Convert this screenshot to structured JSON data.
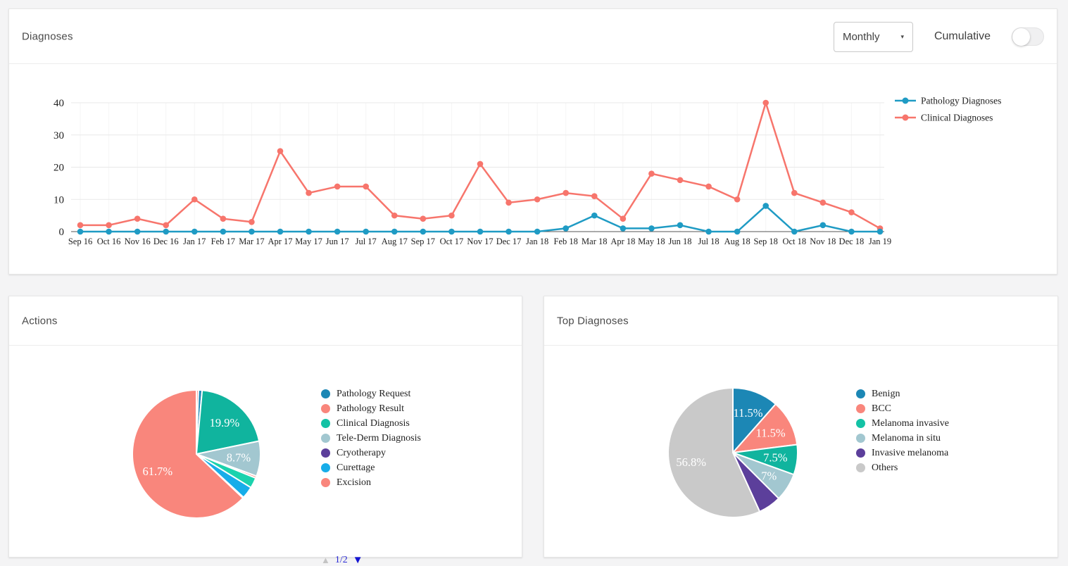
{
  "diagnoses_panel": {
    "title": "Diagnoses",
    "period_select": {
      "value": "Monthly",
      "caret_icon": "▾"
    },
    "cumulative_label": "Cumulative",
    "cumulative_toggle_on": false
  },
  "actions_panel": {
    "title": "Actions",
    "legend_pager": {
      "up_icon": "▲",
      "label": "1/2",
      "down_icon": "▼"
    }
  },
  "top_diagnoses_panel": {
    "title": "Top Diagnoses"
  },
  "ui_colors": {
    "card_bg": "#ffffff",
    "page_bg": "#f4f4f5",
    "pager_active": "#1414d2",
    "pager_inactive": "#c4c4c4"
  },
  "chart_data": [
    {
      "id": "diagnoses_line",
      "type": "line",
      "title": "",
      "xlabel": "",
      "ylabel": "",
      "ylim": [
        0,
        40
      ],
      "yticks": [
        0,
        10,
        20,
        30,
        40
      ],
      "grid": true,
      "legend_position": "right-top",
      "categories": [
        "Sep 16",
        "Oct 16",
        "Nov 16",
        "Dec 16",
        "Jan 17",
        "Feb 17",
        "Mar 17",
        "Apr 17",
        "May 17",
        "Jun 17",
        "Jul 17",
        "Aug 17",
        "Sep 17",
        "Oct 17",
        "Nov 17",
        "Dec 17",
        "Jan 18",
        "Feb 18",
        "Mar 18",
        "Apr 18",
        "May 18",
        "Jun 18",
        "Jul 18",
        "Aug 18",
        "Sep 18",
        "Oct 18",
        "Nov 18",
        "Dec 18",
        "Jan 19"
      ],
      "series": [
        {
          "name": "Pathology Diagnoses",
          "color": "#1f9bc4",
          "values": [
            0,
            0,
            0,
            0,
            0,
            0,
            0,
            0,
            0,
            0,
            0,
            0,
            0,
            0,
            0,
            0,
            0,
            1,
            5,
            1,
            1,
            2,
            0,
            0,
            8,
            0,
            2,
            0,
            0
          ]
        },
        {
          "name": "Clinical Diagnoses",
          "color": "#f7756c",
          "values": [
            2,
            2,
            4,
            2,
            10,
            4,
            3,
            25,
            12,
            14,
            14,
            5,
            4,
            5,
            21,
            9,
            10,
            12,
            11,
            4,
            18,
            16,
            14,
            10,
            40,
            12,
            9,
            6,
            1
          ]
        }
      ]
    },
    {
      "id": "actions_pie",
      "type": "pie",
      "title": "Actions",
      "slices": [
        {
          "label": "Excision",
          "value": 0.5,
          "color": "#f9867c",
          "pct_label": ""
        },
        {
          "label": "Pathology Request",
          "value": 0.9,
          "color": "#1c87b5",
          "pct_label": ""
        },
        {
          "label": "Clinical Diagnosis",
          "value": 19.9,
          "color": "#10b49e",
          "pct_label": "19.9%"
        },
        {
          "label": "Tele-Derm Diagnosis",
          "value": 8.7,
          "color": "#a2c7d0",
          "pct_label": "8.7%"
        },
        {
          "label": "",
          "value": 0.5,
          "color": "#f9867c",
          "pct_label": ""
        },
        {
          "label": "",
          "value": 2.6,
          "color": "#1bd2ad",
          "pct_label": ""
        },
        {
          "label": "Curettage",
          "value": 3.0,
          "color": "#17ade9",
          "pct_label": ""
        },
        {
          "label": "Cryotherapy",
          "value": 0.2,
          "color": "#5c3f9b",
          "pct_label": ""
        },
        {
          "label": "Pathology Result",
          "value": 61.7,
          "color": "#f9867c",
          "pct_label": "61.7%"
        }
      ],
      "legend": [
        {
          "label": "Pathology Request",
          "color": "#1c87b5"
        },
        {
          "label": "Pathology Result",
          "color": "#f9867c"
        },
        {
          "label": "Clinical Diagnosis",
          "color": "#13c2a5"
        },
        {
          "label": "Tele-Derm Diagnosis",
          "color": "#a2c7d0"
        },
        {
          "label": "Cryotherapy",
          "color": "#5c3f9b"
        },
        {
          "label": "Curettage",
          "color": "#17ade9"
        },
        {
          "label": "Excision",
          "color": "#f9867c"
        }
      ],
      "legend_pages": "1/2"
    },
    {
      "id": "top_diagnoses_pie",
      "type": "pie",
      "title": "Top Diagnoses",
      "slices": [
        {
          "label": "Benign",
          "value": 11.5,
          "color": "#1c87b5",
          "pct_label": "11.5%"
        },
        {
          "label": "BCC",
          "value": 11.5,
          "color": "#f9867c",
          "pct_label": "11.5%"
        },
        {
          "label": "Melanoma invasive",
          "value": 7.5,
          "color": "#10b49e",
          "pct_label": "7.5%"
        },
        {
          "label": "Melanoma in situ",
          "value": 7.0,
          "color": "#a2c7d0",
          "pct_label": "7%"
        },
        {
          "label": "Invasive melanoma",
          "value": 5.7,
          "color": "#5c3f9b",
          "pct_label": ""
        },
        {
          "label": "Others",
          "value": 56.8,
          "color": "#c9c9c9",
          "pct_label": "56.8%"
        }
      ],
      "legend": [
        {
          "label": "Benign",
          "color": "#1c87b5"
        },
        {
          "label": "BCC",
          "color": "#f9867c"
        },
        {
          "label": "Melanoma invasive",
          "color": "#13c2a5"
        },
        {
          "label": "Melanoma in situ",
          "color": "#a2c7d0"
        },
        {
          "label": "Invasive melanoma",
          "color": "#5c3f9b"
        },
        {
          "label": "Others",
          "color": "#c9c9c9"
        }
      ]
    }
  ]
}
